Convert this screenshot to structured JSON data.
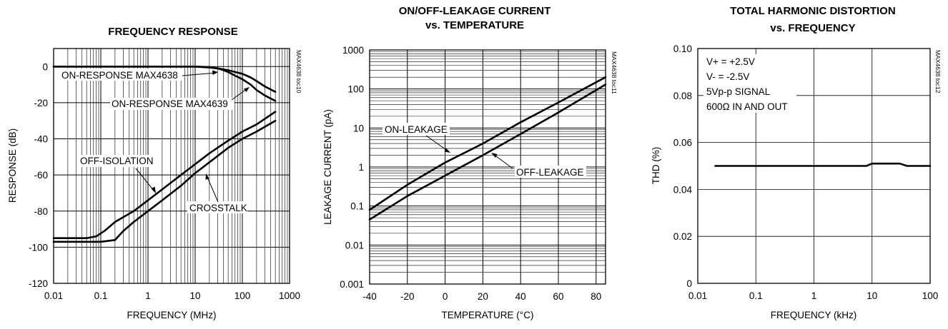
{
  "chart_data": [
    {
      "id": "c1",
      "type": "line",
      "title": [
        "FREQUENCY RESPONSE"
      ],
      "xlabel": "FREQUENCY (MHz)",
      "ylabel": "RESPONSE (dB)",
      "xscale": "log",
      "xlim": [
        0.01,
        1000
      ],
      "ylim": [
        -120,
        10
      ],
      "xticks": [
        0.01,
        0.1,
        1,
        10,
        100,
        1000
      ],
      "xtick_labels": [
        "0.01",
        "0.1",
        "1",
        "10",
        "100",
        "1000"
      ],
      "yticks": [
        0,
        -20,
        -40,
        -60,
        -80,
        -100,
        -120
      ],
      "ytick_labels": [
        "0",
        "-20",
        "-40",
        "-60",
        "-80",
        "-100",
        "-120"
      ],
      "grid": "log-minor",
      "toc": "MAX4638 toc10",
      "series": [
        {
          "name": "ON-RESPONSE MAX4638",
          "x": [
            0.01,
            1,
            10,
            20,
            30,
            50,
            70,
            100,
            150,
            200,
            300,
            500
          ],
          "y": [
            0,
            0,
            0,
            -0.5,
            -1,
            -2,
            -3,
            -4,
            -6,
            -8,
            -11,
            -14
          ]
        },
        {
          "name": "ON-RESPONSE MAX4639",
          "x": [
            0.01,
            1,
            10,
            20,
            30,
            40,
            50,
            70,
            100,
            150,
            200,
            300,
            500
          ],
          "y": [
            0,
            0,
            0,
            -0.3,
            -1,
            -2,
            -3,
            -5,
            -7,
            -10,
            -13,
            -16,
            -19
          ]
        },
        {
          "name": "OFF-ISOLATION",
          "x": [
            0.01,
            0.05,
            0.08,
            0.12,
            0.2,
            0.5,
            1,
            2,
            5,
            10,
            20,
            50,
            100,
            200,
            500
          ],
          "y": [
            -95,
            -95,
            -94,
            -91,
            -86,
            -80,
            -74,
            -68,
            -60,
            -54,
            -48,
            -41,
            -36,
            -32,
            -25
          ]
        },
        {
          "name": "CROSSTALK",
          "x": [
            0.01,
            0.1,
            0.2,
            0.3,
            0.5,
            1,
            2,
            5,
            10,
            20,
            50,
            100,
            200,
            500
          ],
          "y": [
            -97,
            -97,
            -96,
            -91,
            -86,
            -80,
            -74,
            -66,
            -59,
            -53,
            -45,
            -40,
            -36,
            -30
          ]
        }
      ],
      "annotations": [
        "ON-RESPONSE MAX4638",
        "ON-RESPONSE MAX4639",
        "OFF-ISOLATION",
        "CROSSTALK"
      ]
    },
    {
      "id": "c2",
      "type": "line",
      "title": [
        "ON/OFF-LEAKAGE CURRENT",
        "vs. TEMPERATURE"
      ],
      "xlabel": "TEMPERATURE (°C)",
      "ylabel": "LEAKAGE CURRENT (pA)",
      "yscale": "log",
      "xlim": [
        -40,
        85
      ],
      "ylim": [
        0.001,
        1000
      ],
      "xticks": [
        -40,
        -20,
        0,
        20,
        40,
        60,
        80
      ],
      "xtick_labels": [
        "-40",
        "-20",
        "0",
        "20",
        "40",
        "60",
        "80"
      ],
      "yticks": [
        0.001,
        0.01,
        0.1,
        1,
        10,
        100,
        1000
      ],
      "ytick_labels": [
        "0.001",
        "0.01",
        "0.1",
        "1",
        "10",
        "100",
        "1000"
      ],
      "grid": "log-minor",
      "toc": "MAX4638 toc11",
      "series": [
        {
          "name": "ON-LEAKAGE",
          "x": [
            -40,
            -20,
            0,
            20,
            40,
            60,
            85
          ],
          "y": [
            0.08,
            0.35,
            1.3,
            4,
            14,
            45,
            200
          ]
        },
        {
          "name": "OFF-LEAKAGE",
          "x": [
            -40,
            -20,
            0,
            20,
            40,
            60,
            85
          ],
          "y": [
            0.045,
            0.18,
            0.6,
            2,
            7,
            25,
            130
          ]
        }
      ],
      "annotations": [
        "ON-LEAKAGE",
        "OFF-LEAKAGE"
      ]
    },
    {
      "id": "c3",
      "type": "line",
      "title": [
        "TOTAL HARMONIC DISTORTION",
        "vs. FREQUENCY"
      ],
      "xlabel": "FREQUENCY (kHz)",
      "ylabel": "THD (%)",
      "xscale": "log",
      "xlim": [
        0.01,
        100
      ],
      "ylim": [
        0,
        0.1
      ],
      "xticks": [
        0.01,
        0.1,
        1,
        10,
        100
      ],
      "xtick_labels": [
        "0.01",
        "0.1",
        "1",
        "10",
        "100"
      ],
      "yticks": [
        0,
        0.02,
        0.04,
        0.06,
        0.08,
        0.1
      ],
      "ytick_labels": [
        "0",
        "0.02",
        "0.04",
        "0.06",
        "0.08",
        "0.10"
      ],
      "grid": "major",
      "toc": "MAX4638 toc12",
      "series": [
        {
          "name": "THD",
          "x": [
            0.02,
            0.1,
            1,
            8,
            10,
            20,
            30,
            40,
            100
          ],
          "y": [
            0.05,
            0.05,
            0.05,
            0.05,
            0.051,
            0.051,
            0.051,
            0.05,
            0.05
          ]
        }
      ],
      "annotations": [
        "V+ = +2.5V",
        "V- = -2.5V",
        "5Vp-p SIGNAL",
        "600Ω IN AND OUT"
      ]
    }
  ]
}
